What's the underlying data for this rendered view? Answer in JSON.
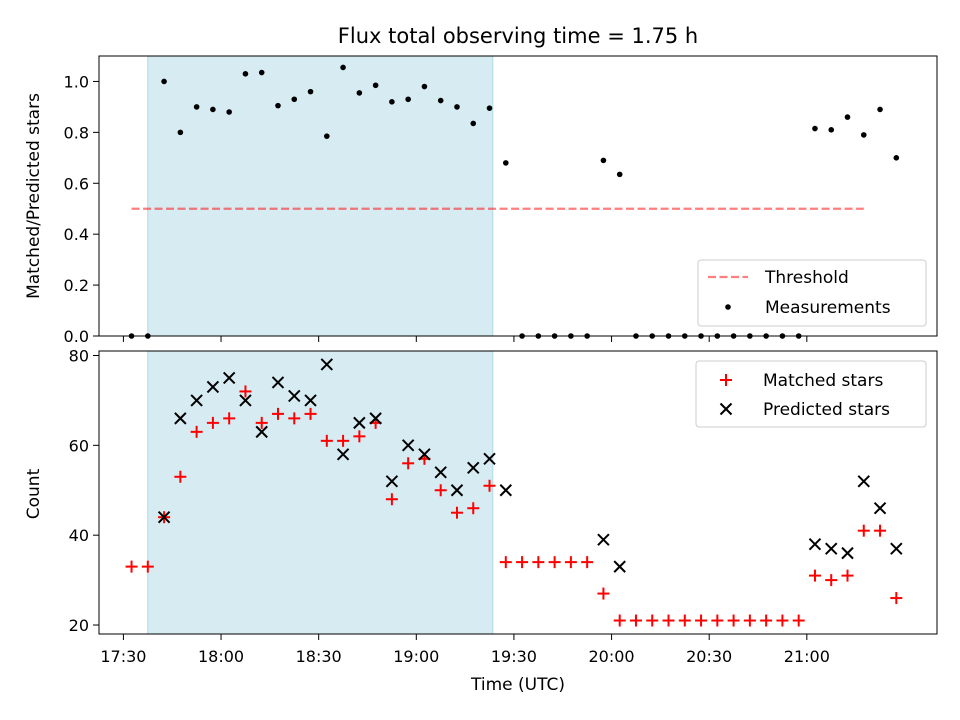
{
  "chart_data": [
    {
      "type": "scatter",
      "title": "Flux total observing time = 1.75 h",
      "xlabel": "",
      "ylabel": "Matched/Predicted stars",
      "xlim": [
        -1,
        50.5
      ],
      "ylim": [
        0,
        1.1
      ],
      "yticks": [
        0.0,
        0.2,
        0.4,
        0.6,
        0.8,
        1.0
      ],
      "ytick_labels": [
        "0.0",
        "0.2",
        "0.4",
        "0.6",
        "0.8",
        "1.0"
      ],
      "highlight_x": [
        2,
        23.2
      ],
      "legend_position": "lower right",
      "threshold": {
        "name": "Threshold",
        "value": 0.5,
        "x_range": [
          1,
          46
        ]
      },
      "series": [
        {
          "name": "Measurements",
          "x": [
            1,
            2,
            3,
            4,
            5,
            6,
            7,
            8,
            9,
            10,
            11,
            12,
            13,
            14,
            15,
            16,
            17,
            18,
            19,
            20,
            21,
            22,
            23,
            24,
            25,
            26,
            27,
            28,
            29,
            30,
            31,
            32,
            33,
            34,
            35,
            36,
            37,
            38,
            39,
            40,
            41,
            42,
            43,
            44,
            45,
            46,
            47,
            48
          ],
          "values": [
            0,
            0,
            1.0,
            0.8,
            0.9,
            0.89,
            0.88,
            1.03,
            1.035,
            0.905,
            0.93,
            0.96,
            0.785,
            1.055,
            0.955,
            0.985,
            0.92,
            0.93,
            0.98,
            0.925,
            0.9,
            0.835,
            0.895,
            0.68,
            0,
            0,
            0,
            0,
            0,
            0.69,
            0.635,
            0,
            0,
            0,
            0,
            0,
            0,
            0,
            0,
            0,
            0,
            0,
            0.815,
            0.81,
            0.86,
            0.79,
            0.89,
            0.7
          ]
        }
      ]
    },
    {
      "type": "scatter",
      "title": "",
      "xlabel": "Time (UTC)",
      "ylabel": "Count",
      "xlim": [
        -1,
        50.5
      ],
      "ylim": [
        18,
        81
      ],
      "yticks": [
        20,
        40,
        60,
        80
      ],
      "ytick_labels": [
        "20",
        "40",
        "60",
        "80"
      ],
      "xticks": [
        0.5,
        6.5,
        12.5,
        18.5,
        24.5,
        30.5,
        36.5,
        42.5
      ],
      "xtick_labels": [
        "17:30",
        "18:00",
        "18:30",
        "19:00",
        "19:30",
        "20:00",
        "20:30",
        "21:00"
      ],
      "highlight_x": [
        2,
        23.2
      ],
      "legend_position": "upper right",
      "series": [
        {
          "name": "Matched stars",
          "x": [
            1,
            2,
            3,
            4,
            5,
            6,
            7,
            8,
            9,
            10,
            11,
            12,
            13,
            14,
            15,
            16,
            17,
            18,
            19,
            20,
            21,
            22,
            23,
            24,
            25,
            26,
            27,
            28,
            29,
            30,
            31,
            32,
            33,
            34,
            35,
            36,
            37,
            38,
            39,
            40,
            41,
            42,
            43,
            44,
            45,
            46,
            47,
            48
          ],
          "values": [
            33,
            33,
            44,
            53,
            63,
            65,
            66,
            72,
            65,
            67,
            66,
            67,
            61,
            61,
            62,
            65,
            48,
            56,
            57,
            50,
            45,
            46,
            51,
            34,
            34,
            34,
            34,
            34,
            34,
            27,
            21,
            21,
            21,
            21,
            21,
            21,
            21,
            21,
            21,
            21,
            21,
            21,
            31,
            30,
            31,
            41,
            41,
            26
          ]
        },
        {
          "name": "Predicted stars",
          "x": [
            3,
            4,
            5,
            6,
            7,
            8,
            9,
            10,
            11,
            12,
            13,
            14,
            15,
            16,
            17,
            18,
            19,
            20,
            21,
            22,
            23,
            24,
            30,
            31,
            43,
            44,
            45,
            46,
            47,
            48
          ],
          "values": [
            44,
            66,
            70,
            73,
            75,
            70,
            63,
            74,
            71,
            70,
            78,
            58,
            65,
            66,
            52,
            60,
            58,
            54,
            50,
            55,
            57,
            50,
            39,
            33,
            38,
            37,
            36,
            52,
            46,
            37
          ]
        }
      ]
    }
  ]
}
